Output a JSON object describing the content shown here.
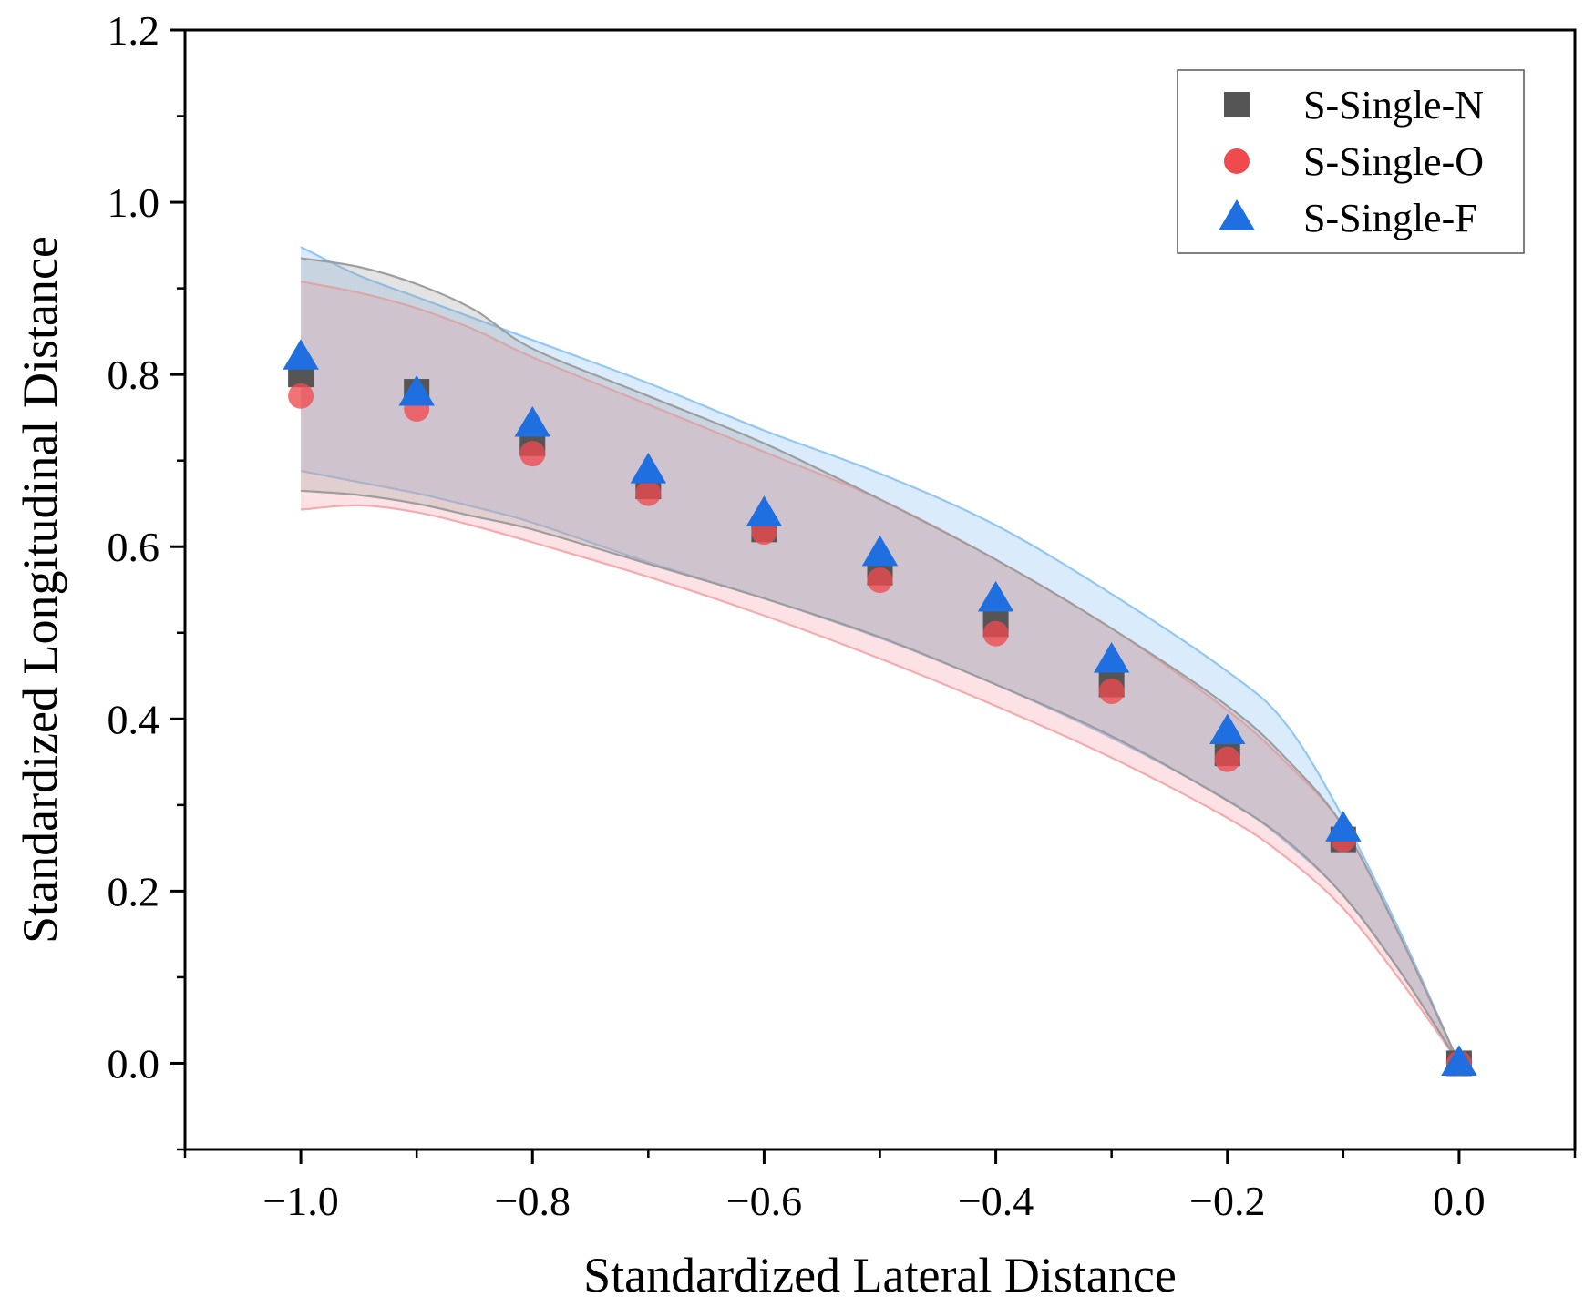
{
  "chart_data": {
    "type": "scatter",
    "title": "",
    "xlabel": "Standardized Lateral Distance",
    "ylabel": "Standardized Longitudinal Distance",
    "xlim": [
      -1.1,
      0.1
    ],
    "ylim": [
      -0.1,
      1.2
    ],
    "x_ticks": [
      -1.0,
      -0.8,
      -0.6,
      -0.4,
      -0.2,
      0.0
    ],
    "x_tick_labels": [
      "−1.0",
      "−0.8",
      "−0.6",
      "−0.4",
      "−0.2",
      "0.0"
    ],
    "y_ticks": [
      0.0,
      0.2,
      0.4,
      0.6,
      0.8,
      1.0,
      1.2
    ],
    "y_tick_labels": [
      "0.0",
      "0.2",
      "0.4",
      "0.6",
      "0.8",
      "1.0",
      "1.2"
    ],
    "grid": false,
    "legend_position": "top-right",
    "x": [
      -1.0,
      -0.9,
      -0.8,
      -0.7,
      -0.6,
      -0.5,
      -0.4,
      -0.3,
      -0.2,
      -0.1,
      0.0
    ],
    "series": [
      {
        "name": "S-Single-N",
        "marker": "square",
        "color": "#555555",
        "values": [
          0.8,
          0.78,
          0.72,
          0.67,
          0.62,
          0.57,
          0.51,
          0.44,
          0.36,
          0.26,
          0.0
        ],
        "band_x": [
          -1.0,
          -0.95,
          -0.9,
          -0.85,
          -0.8,
          -0.7,
          -0.6,
          -0.5,
          -0.4,
          -0.3,
          -0.2,
          -0.15,
          -0.1,
          -0.05,
          0.0
        ],
        "band_upper": [
          0.935,
          0.925,
          0.905,
          0.875,
          0.83,
          0.775,
          0.72,
          0.655,
          0.585,
          0.505,
          0.415,
          0.355,
          0.275,
          0.145,
          0.0
        ],
        "band_lower": [
          0.665,
          0.66,
          0.65,
          0.635,
          0.62,
          0.58,
          0.54,
          0.495,
          0.44,
          0.38,
          0.305,
          0.26,
          0.195,
          0.105,
          0.0
        ],
        "band_color": "#9a9a9a"
      },
      {
        "name": "S-Single-O",
        "marker": "circle",
        "color": "#f04a4f",
        "values": [
          0.775,
          0.76,
          0.708,
          0.662,
          0.617,
          0.561,
          0.499,
          0.432,
          0.353,
          0.26,
          0.0
        ],
        "band_x": [
          -1.0,
          -0.95,
          -0.9,
          -0.85,
          -0.8,
          -0.7,
          -0.6,
          -0.5,
          -0.4,
          -0.3,
          -0.2,
          -0.15,
          -0.1,
          -0.05,
          0.0
        ],
        "band_upper": [
          0.908,
          0.895,
          0.877,
          0.852,
          0.82,
          0.765,
          0.71,
          0.655,
          0.585,
          0.505,
          0.41,
          0.35,
          0.275,
          0.145,
          0.0
        ],
        "band_lower": [
          0.643,
          0.648,
          0.64,
          0.624,
          0.605,
          0.565,
          0.52,
          0.47,
          0.415,
          0.355,
          0.285,
          0.24,
          0.18,
          0.095,
          0.0
        ],
        "band_color": "#f6a6aa"
      },
      {
        "name": "S-Single-F",
        "marker": "triangle",
        "color": "#1f6fe0",
        "values": [
          0.82,
          0.778,
          0.742,
          0.688,
          0.638,
          0.592,
          0.539,
          0.468,
          0.385,
          0.272,
          0.0
        ],
        "band_x": [
          -1.0,
          -0.95,
          -0.9,
          -0.85,
          -0.8,
          -0.7,
          -0.6,
          -0.5,
          -0.4,
          -0.3,
          -0.2,
          -0.15,
          -0.1,
          -0.05,
          0.0
        ],
        "band_upper": [
          0.948,
          0.915,
          0.89,
          0.865,
          0.84,
          0.79,
          0.735,
          0.685,
          0.625,
          0.545,
          0.455,
          0.395,
          0.285,
          0.15,
          0.0
        ],
        "band_lower": [
          0.688,
          0.675,
          0.662,
          0.646,
          0.628,
          0.582,
          0.54,
          0.494,
          0.44,
          0.378,
          0.306,
          0.258,
          0.195,
          0.105,
          0.0
        ],
        "band_color": "#8cc4f4"
      }
    ]
  }
}
